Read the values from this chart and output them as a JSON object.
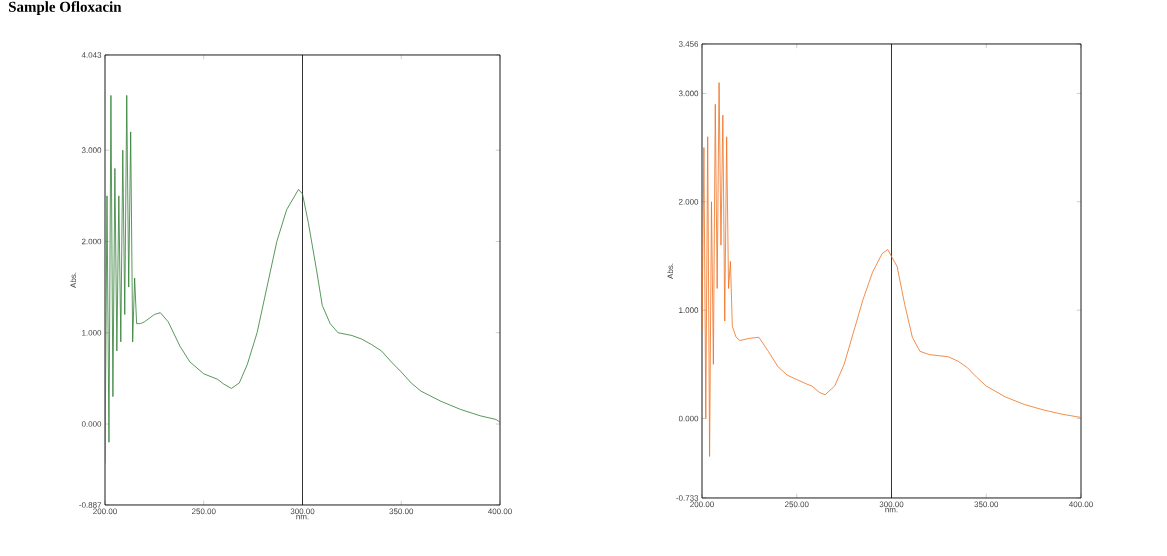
{
  "chart_data": [
    {
      "type": "line",
      "title": "Sample Ofloxacin",
      "xlabel": "nm.",
      "ylabel": "Abs.",
      "xlim": [
        200,
        400
      ],
      "ylim": [
        -0.887,
        4.043
      ],
      "xticks": [
        {
          "value": 200,
          "label": "200.00"
        },
        {
          "value": 250,
          "label": "250.00"
        },
        {
          "value": 300,
          "label": "300.00"
        },
        {
          "value": 350,
          "label": "350.00"
        },
        {
          "value": 400,
          "label": "400.00"
        }
      ],
      "yticks": [
        {
          "value": -0.887,
          "label": "-0.887"
        },
        {
          "value": 0,
          "label": "0.000"
        },
        {
          "value": 1,
          "label": "1.000"
        },
        {
          "value": 2,
          "label": "2.000"
        },
        {
          "value": 3,
          "label": "3.000"
        },
        {
          "value": 4.043,
          "label": "4.043"
        }
      ],
      "ref_lines": [
        {
          "axis": "x",
          "value": 300,
          "color": "#000000"
        }
      ],
      "series": [
        {
          "color": "#2e7d32",
          "x": [
            200,
            201,
            202,
            203,
            204,
            205,
            206,
            207,
            208,
            209,
            210,
            211,
            212,
            213,
            214,
            215,
            216,
            218,
            220,
            225,
            228,
            232,
            238,
            243,
            250,
            257,
            260,
            264,
            268,
            272,
            277,
            282,
            287,
            292,
            298,
            300,
            303,
            307,
            310,
            314,
            318,
            325,
            330,
            335,
            340,
            345,
            350,
            355,
            360,
            370,
            380,
            390,
            398,
            400
          ],
          "values": [
            -0.43,
            2.5,
            -0.2,
            3.6,
            0.3,
            2.8,
            0.8,
            2.5,
            0.9,
            3.0,
            1.2,
            3.6,
            1.5,
            3.2,
            0.9,
            1.6,
            1.1,
            1.1,
            1.12,
            1.2,
            1.22,
            1.12,
            0.85,
            0.68,
            0.55,
            0.49,
            0.44,
            0.39,
            0.45,
            0.65,
            1.0,
            1.5,
            2.0,
            2.35,
            2.57,
            2.52,
            2.2,
            1.7,
            1.3,
            1.1,
            1.0,
            0.97,
            0.93,
            0.87,
            0.8,
            0.68,
            0.57,
            0.45,
            0.36,
            0.25,
            0.16,
            0.09,
            0.05,
            0.02
          ]
        }
      ]
    },
    {
      "type": "line",
      "xlabel": "nm.",
      "ylabel": "Abs.",
      "xlim": [
        200,
        400
      ],
      "ylim": [
        -0.733,
        3.456
      ],
      "xticks": [
        {
          "value": 200,
          "label": "200.00"
        },
        {
          "value": 250,
          "label": "250.00"
        },
        {
          "value": 300,
          "label": "300.00"
        },
        {
          "value": 350,
          "label": "350.00"
        },
        {
          "value": 400,
          "label": "400.00"
        }
      ],
      "yticks": [
        {
          "value": -0.733,
          "label": "-0.733"
        },
        {
          "value": 0,
          "label": "0.000"
        },
        {
          "value": 1,
          "label": "1.000"
        },
        {
          "value": 2,
          "label": "2.000"
        },
        {
          "value": 3,
          "label": "3.000"
        },
        {
          "value": 3.456,
          "label": "3.456"
        }
      ],
      "ref_lines": [
        {
          "axis": "x",
          "value": 300,
          "color": "#000000"
        }
      ],
      "series": [
        {
          "color": "#f07020",
          "x": [
            200,
            201,
            202,
            203,
            204,
            205,
            206,
            207,
            208,
            209,
            210,
            211,
            212,
            213,
            214,
            215,
            216,
            218,
            220,
            225,
            230,
            235,
            240,
            245,
            250,
            255,
            258,
            262,
            265,
            270,
            275,
            280,
            285,
            290,
            295,
            298,
            303,
            307,
            311,
            315,
            320,
            325,
            330,
            335,
            340,
            345,
            350,
            360,
            370,
            380,
            390,
            400
          ],
          "values": [
            0.8,
            2.5,
            0.0,
            2.6,
            -0.35,
            2.0,
            0.5,
            2.9,
            1.2,
            3.1,
            1.6,
            2.8,
            0.9,
            2.6,
            1.2,
            1.45,
            0.85,
            0.75,
            0.72,
            0.74,
            0.75,
            0.62,
            0.48,
            0.4,
            0.36,
            0.32,
            0.3,
            0.24,
            0.22,
            0.3,
            0.5,
            0.8,
            1.1,
            1.35,
            1.52,
            1.56,
            1.4,
            1.05,
            0.75,
            0.62,
            0.59,
            0.58,
            0.57,
            0.53,
            0.47,
            0.38,
            0.3,
            0.2,
            0.13,
            0.08,
            0.04,
            0.01
          ]
        }
      ]
    }
  ]
}
